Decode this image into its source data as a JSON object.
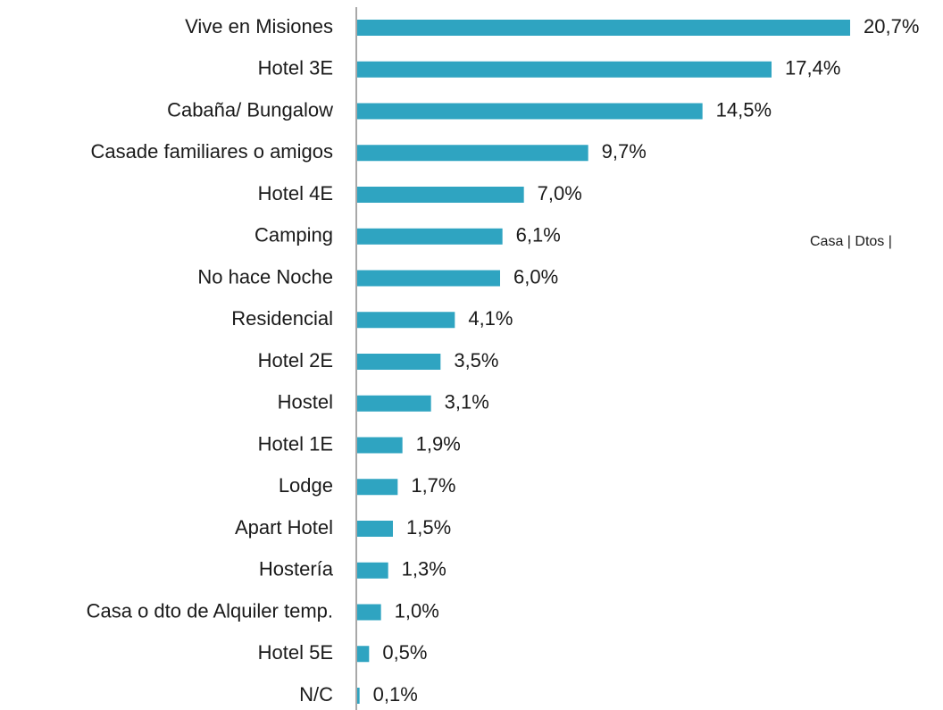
{
  "chart_data": {
    "type": "barh",
    "categories": [
      "Vive en Misiones",
      "Hotel 3E",
      "Cabaña/ Bungalow",
      "Casade familiares o amigos",
      "Hotel 4E",
      "Camping",
      "No hace Noche",
      "Residencial",
      "Hotel 2E",
      "Hostel",
      "Hotel 1E",
      "Lodge",
      "Apart Hotel",
      "Hostería",
      "Casa o dto de Alquiler temp.",
      "Hotel 5E",
      "N/C"
    ],
    "values": [
      20.7,
      17.4,
      14.5,
      9.7,
      7.0,
      6.1,
      6.0,
      4.1,
      3.5,
      3.1,
      1.9,
      1.7,
      1.5,
      1.3,
      1.0,
      0.5,
      0.1
    ],
    "value_labels": [
      "20,7%",
      "17,4%",
      "14,5%",
      "9,7%",
      "7,0%",
      "6,1%",
      "6,0%",
      "4,1%",
      "3,5%",
      "3,1%",
      "1,9%",
      "1,7%",
      "1,5%",
      "1,3%",
      "1,0%",
      "0,5%",
      "0,1%"
    ],
    "color": "#2fa4c1",
    "annotation": "Casa | Dtos |"
  }
}
